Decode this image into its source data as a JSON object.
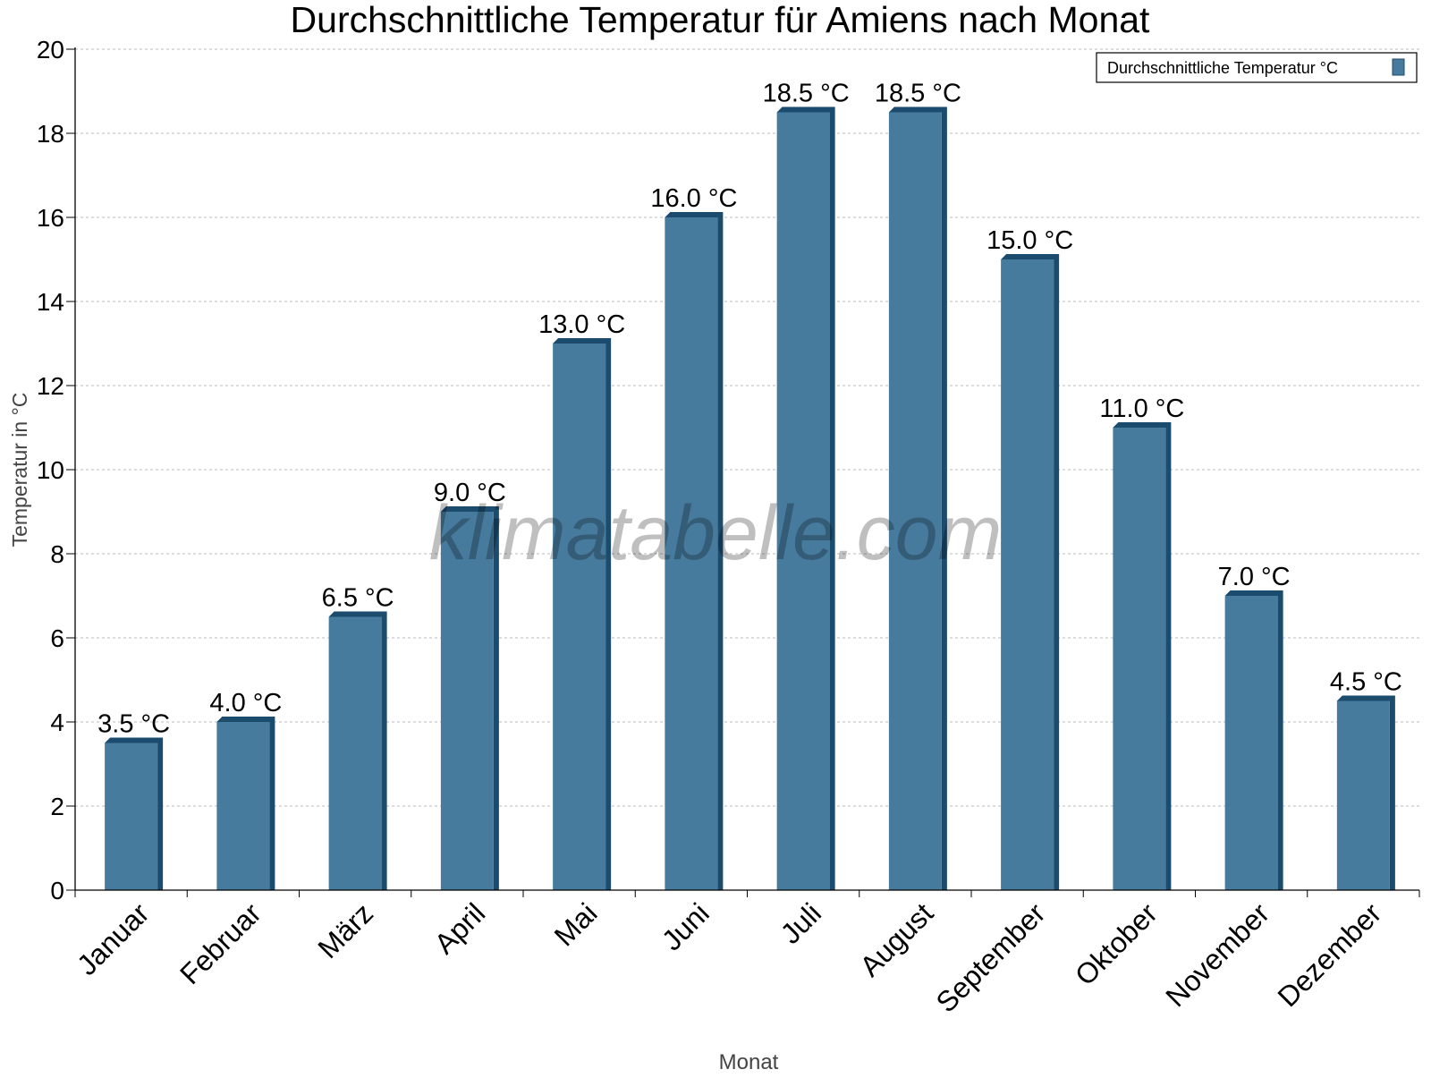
{
  "chart_data": {
    "type": "bar",
    "title": "Durchschnittliche Temperatur für Amiens nach Monat",
    "xlabel": "Monat",
    "ylabel": "Temperatur in °C",
    "ylim": [
      0,
      20
    ],
    "yticks": [
      0,
      2,
      4,
      6,
      8,
      10,
      12,
      14,
      16,
      18,
      20
    ],
    "grid": true,
    "legend_position": "top-right",
    "categories": [
      "Januar",
      "Februar",
      "März",
      "April",
      "Mai",
      "Juni",
      "Juli",
      "August",
      "September",
      "Oktober",
      "November",
      "Dezember"
    ],
    "series": [
      {
        "name": "Durchschnittliche Temperatur °C",
        "values": [
          3.5,
          4.0,
          6.5,
          9.0,
          13.0,
          16.0,
          18.5,
          18.5,
          15.0,
          11.0,
          7.0,
          4.5
        ],
        "labels": [
          "3.5 °C",
          "4.0 °C",
          "6.5 °C",
          "9.0 °C",
          "13.0 °C",
          "16.0 °C",
          "18.5 °C",
          "18.5 °C",
          "15.0 °C",
          "11.0 °C",
          "7.0 °C",
          "4.5 °C"
        ],
        "color": "#467b9e",
        "side_color": "#1b4b6d"
      }
    ],
    "watermark": "klimatabelle.com"
  }
}
